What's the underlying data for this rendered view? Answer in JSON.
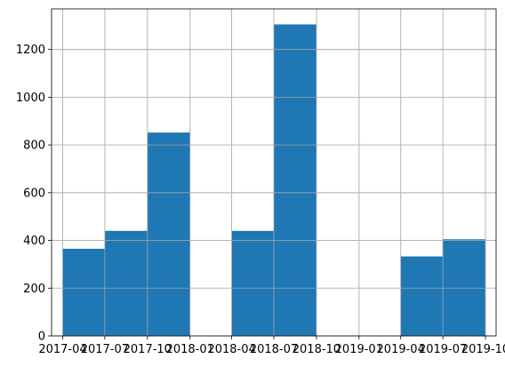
{
  "chart_data": {
    "type": "bar",
    "title": "",
    "xlabel": "",
    "ylabel": "",
    "xlim": [
      "2017-03-08",
      "2019-10-24"
    ],
    "ylim": [
      0,
      1370
    ],
    "grid": true,
    "bar_color": "#1f77b4",
    "grid_color": "#b0b0b0",
    "bins": [
      {
        "start": "2017-04-01",
        "end": "2017-07-01",
        "value": 365
      },
      {
        "start": "2017-07-01",
        "end": "2017-10-01",
        "value": 440
      },
      {
        "start": "2017-10-01",
        "end": "2018-01-01",
        "value": 852
      },
      {
        "start": "2018-01-01",
        "end": "2018-04-01",
        "value": 0
      },
      {
        "start": "2018-04-01",
        "end": "2018-07-01",
        "value": 440
      },
      {
        "start": "2018-07-01",
        "end": "2018-10-01",
        "value": 1305
      },
      {
        "start": "2018-10-01",
        "end": "2019-01-01",
        "value": 0
      },
      {
        "start": "2019-01-01",
        "end": "2019-04-01",
        "value": 0
      },
      {
        "start": "2019-04-01",
        "end": "2019-07-01",
        "value": 333
      },
      {
        "start": "2019-07-01",
        "end": "2019-10-01",
        "value": 405
      }
    ],
    "x_ticks": [
      {
        "date": "2017-04-01",
        "label": "2017-04"
      },
      {
        "date": "2017-07-01",
        "label": "2017-07"
      },
      {
        "date": "2017-10-01",
        "label": "2017-10"
      },
      {
        "date": "2018-01-01",
        "label": "2018-01"
      },
      {
        "date": "2018-04-01",
        "label": "2018-04"
      },
      {
        "date": "2018-07-01",
        "label": "2018-07"
      },
      {
        "date": "2018-10-01",
        "label": "2018-10"
      },
      {
        "date": "2019-01-01",
        "label": "2019-01"
      },
      {
        "date": "2019-04-01",
        "label": "2019-04"
      },
      {
        "date": "2019-07-01",
        "label": "2019-07"
      },
      {
        "date": "2019-10-01",
        "label": "2019-10"
      }
    ],
    "y_ticks": [
      {
        "value": 0,
        "label": "0"
      },
      {
        "value": 200,
        "label": "200"
      },
      {
        "value": 400,
        "label": "400"
      },
      {
        "value": 600,
        "label": "600"
      },
      {
        "value": 800,
        "label": "800"
      },
      {
        "value": 1000,
        "label": "1000"
      },
      {
        "value": 1200,
        "label": "1200"
      }
    ]
  }
}
